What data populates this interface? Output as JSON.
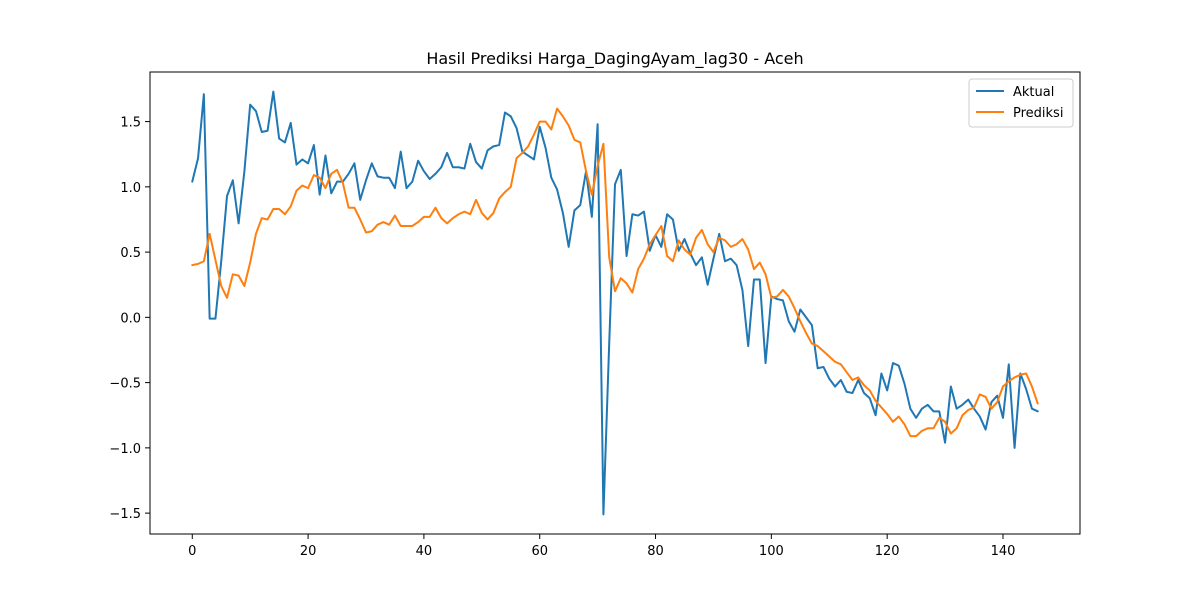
{
  "chart_data": {
    "type": "line",
    "title": "Hasil Prediksi Harga_DagingAyam_lag30 - Aceh",
    "xlabel": "",
    "ylabel": "",
    "xlim": [
      -7.3,
      153.3
    ],
    "ylim": [
      -1.66,
      1.88
    ],
    "xticks": [
      0,
      20,
      40,
      60,
      80,
      100,
      120,
      140
    ],
    "yticks": [
      -1.5,
      -1.0,
      -0.5,
      0.0,
      0.5,
      1.0,
      1.5
    ],
    "grid": false,
    "legend_position": "top-right",
    "series": [
      {
        "name": "Aktual",
        "color": "#1f77b4",
        "values": [
          1.04,
          1.22,
          1.71,
          -0.01,
          -0.01,
          0.43,
          0.93,
          1.05,
          0.72,
          1.12,
          1.63,
          1.58,
          1.42,
          1.43,
          1.73,
          1.37,
          1.34,
          1.49,
          1.17,
          1.21,
          1.18,
          1.32,
          0.94,
          1.24,
          0.95,
          1.04,
          1.04,
          1.1,
          1.18,
          0.9,
          1.05,
          1.18,
          1.08,
          1.07,
          1.07,
          0.99,
          1.27,
          0.99,
          1.04,
          1.2,
          1.12,
          1.06,
          1.1,
          1.15,
          1.26,
          1.15,
          1.15,
          1.14,
          1.33,
          1.19,
          1.14,
          1.28,
          1.31,
          1.32,
          1.57,
          1.54,
          1.45,
          1.27,
          1.24,
          1.21,
          1.46,
          1.3,
          1.07,
          0.98,
          0.8,
          0.54,
          0.82,
          0.86,
          1.12,
          0.77,
          1.48,
          -1.51,
          -0.2,
          1.02,
          1.13,
          0.47,
          0.79,
          0.78,
          0.81,
          0.51,
          0.63,
          0.54,
          0.79,
          0.75,
          0.51,
          0.6,
          0.49,
          0.4,
          0.46,
          0.25,
          0.45,
          0.64,
          0.43,
          0.45,
          0.4,
          0.21,
          -0.22,
          0.29,
          0.29,
          -0.35,
          0.16,
          0.14,
          0.13,
          -0.03,
          -0.11,
          0.06,
          0.0,
          -0.06,
          -0.39,
          -0.38,
          -0.47,
          -0.53,
          -0.48,
          -0.57,
          -0.58,
          -0.48,
          -0.58,
          -0.62,
          -0.75,
          -0.43,
          -0.56,
          -0.35,
          -0.37,
          -0.51,
          -0.7,
          -0.77,
          -0.7,
          -0.67,
          -0.72,
          -0.72,
          -0.96,
          -0.53,
          -0.7,
          -0.67,
          -0.63,
          -0.7,
          -0.76,
          -0.86,
          -0.65,
          -0.6,
          -0.77,
          -0.36,
          -1.0,
          -0.43,
          -0.55,
          -0.7,
          -0.72
        ]
      },
      {
        "name": "Prediksi",
        "color": "#ff7f0e",
        "values": [
          0.4,
          0.41,
          0.43,
          0.64,
          0.44,
          0.24,
          0.15,
          0.33,
          0.32,
          0.24,
          0.42,
          0.64,
          0.76,
          0.75,
          0.83,
          0.83,
          0.79,
          0.85,
          0.97,
          1.01,
          0.99,
          1.09,
          1.07,
          0.99,
          1.1,
          1.13,
          1.03,
          0.84,
          0.84,
          0.75,
          0.65,
          0.66,
          0.71,
          0.73,
          0.71,
          0.78,
          0.7,
          0.7,
          0.7,
          0.73,
          0.77,
          0.77,
          0.84,
          0.76,
          0.72,
          0.76,
          0.79,
          0.81,
          0.79,
          0.9,
          0.8,
          0.75,
          0.8,
          0.91,
          0.96,
          1.0,
          1.22,
          1.26,
          1.31,
          1.4,
          1.5,
          1.5,
          1.44,
          1.6,
          1.54,
          1.47,
          1.36,
          1.34,
          1.12,
          0.94,
          1.16,
          1.33,
          0.46,
          0.2,
          0.3,
          0.26,
          0.19,
          0.37,
          0.45,
          0.56,
          0.63,
          0.7,
          0.47,
          0.43,
          0.59,
          0.52,
          0.48,
          0.61,
          0.67,
          0.56,
          0.5,
          0.61,
          0.59,
          0.54,
          0.56,
          0.6,
          0.52,
          0.37,
          0.42,
          0.33,
          0.15,
          0.16,
          0.21,
          0.16,
          0.07,
          -0.03,
          -0.12,
          -0.2,
          -0.22,
          -0.26,
          -0.3,
          -0.34,
          -0.36,
          -0.42,
          -0.48,
          -0.46,
          -0.52,
          -0.56,
          -0.64,
          -0.69,
          -0.74,
          -0.8,
          -0.76,
          -0.82,
          -0.91,
          -0.91,
          -0.87,
          -0.85,
          -0.85,
          -0.77,
          -0.8,
          -0.89,
          -0.85,
          -0.75,
          -0.71,
          -0.69,
          -0.59,
          -0.61,
          -0.7,
          -0.65,
          -0.53,
          -0.49,
          -0.46,
          -0.44,
          -0.43,
          -0.53,
          -0.66
        ]
      }
    ]
  }
}
